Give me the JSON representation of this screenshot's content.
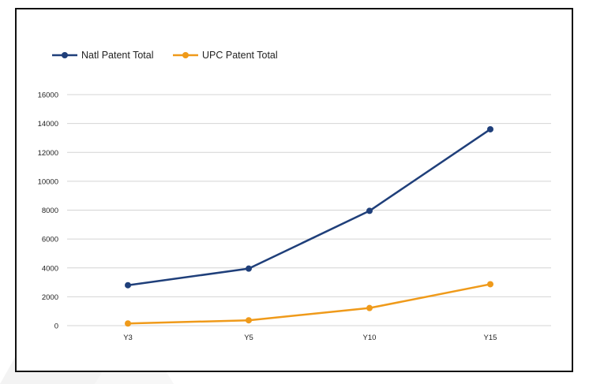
{
  "colors": {
    "natl": "#1f3f7a",
    "upc": "#ef9a1a",
    "grid": "#d4d4d4",
    "frame": "#111111"
  },
  "chart_data": {
    "type": "line",
    "categories": [
      "Y3",
      "Y5",
      "Y10",
      "Y15"
    ],
    "series": [
      {
        "name": "Natl Patent Total",
        "color": "#1f3f7a",
        "values": [
          2800,
          3950,
          7950,
          13600
        ]
      },
      {
        "name": "UPC Patent Total",
        "color": "#ef9a1a",
        "values": [
          150,
          370,
          1220,
          2870
        ]
      }
    ],
    "ylim": [
      0,
      16000
    ],
    "yticks": [
      "0",
      "2000",
      "4000",
      "6000",
      "8000",
      "10000",
      "12000",
      "14000",
      "16000"
    ],
    "grid": true,
    "legend_position": "top-left"
  }
}
